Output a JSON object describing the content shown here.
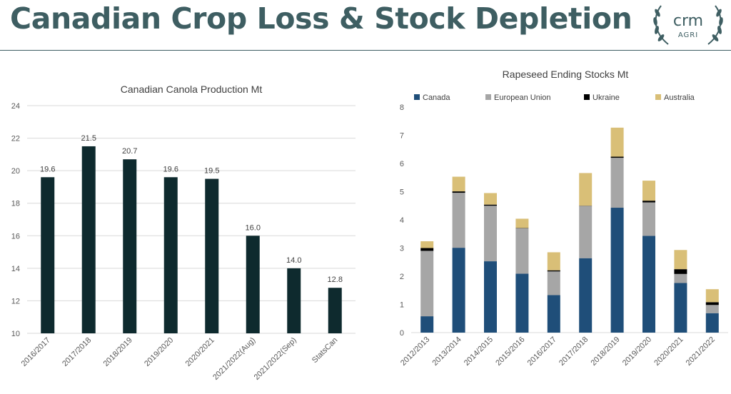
{
  "slide": {
    "title": "Canadian Crop Loss & Stock Depletion"
  },
  "logo": {
    "brand": "crm",
    "sub": "AGRI",
    "icon": "laurel-wreath-icon",
    "color": "#3e5e62"
  },
  "chart_data": [
    {
      "type": "bar",
      "title": "Canadian Canola Production Mt",
      "xlabel": "",
      "ylabel": "",
      "categories": [
        "2016/2017",
        "2017/2018",
        "2018/2019",
        "2019/2020",
        "2020/2021",
        "2021/2022(Aug)",
        "2021/2022(Sep)",
        "StatsCan"
      ],
      "values": [
        19.6,
        21.5,
        20.7,
        19.6,
        19.5,
        16.0,
        14.0,
        12.8
      ],
      "data_labels": [
        "19.6",
        "21.5",
        "20.7",
        "19.6",
        "19.5",
        "16.0",
        "14.0",
        "12.8"
      ],
      "ylim": [
        10,
        24
      ],
      "yticks": [
        "10",
        "12",
        "14",
        "16",
        "18",
        "20",
        "22",
        "24"
      ],
      "grid": true,
      "legend": "none",
      "color": "#0e2a2e"
    },
    {
      "type": "bar",
      "stacked": true,
      "title": "Rapeseed Ending Stocks Mt",
      "xlabel": "",
      "ylabel": "",
      "categories": [
        "2012/2013",
        "2013/2014",
        "2014/2015",
        "2015/2016",
        "2016/2017",
        "2017/2018",
        "2018/2019",
        "2019/2020",
        "2020/2021",
        "2021/2022"
      ],
      "series": [
        {
          "name": "Canada",
          "color": "#1f4e79",
          "values": [
            0.58,
            3.01,
            2.53,
            2.09,
            1.33,
            2.64,
            4.43,
            3.43,
            1.76,
            0.69
          ]
        },
        {
          "name": "European Union",
          "color": "#a6a6a6",
          "values": [
            2.32,
            1.95,
            1.97,
            1.61,
            0.84,
            1.85,
            1.77,
            1.19,
            0.32,
            0.29
          ]
        },
        {
          "name": "Ukraine",
          "color": "#000000",
          "values": [
            0.1,
            0.05,
            0.04,
            0.01,
            0.04,
            0.01,
            0.04,
            0.06,
            0.17,
            0.1
          ]
        },
        {
          "name": "Australia",
          "color": "#d9bf77",
          "values": [
            0.24,
            0.52,
            0.41,
            0.33,
            0.64,
            1.16,
            1.03,
            0.71,
            0.68,
            0.46
          ]
        }
      ],
      "ylim": [
        0,
        8
      ],
      "yticks": [
        "0",
        "1",
        "2",
        "3",
        "4",
        "5",
        "6",
        "7",
        "8"
      ],
      "grid": false,
      "legend": "top"
    }
  ]
}
